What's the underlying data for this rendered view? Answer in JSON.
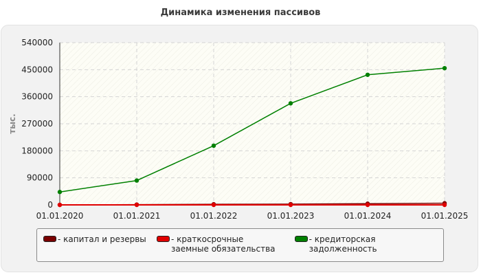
{
  "chart_data": {
    "type": "line",
    "title": "Динамика изменения пассивов",
    "ylabel": "тыс.",
    "xlabel": "",
    "x": [
      "01.01.2020",
      "01.01.2021",
      "01.01.2022",
      "01.01.2023",
      "01.01.2024",
      "01.01.2025"
    ],
    "ylim": [
      0,
      540000
    ],
    "yticks": [
      "0",
      "90000",
      "180000",
      "270000",
      "360000",
      "450000",
      "540000"
    ],
    "grid": true,
    "legend_position": "bottom",
    "series": [
      {
        "name": "капитал и резервы",
        "color": "#7a0000",
        "values": [
          0,
          1000,
          2000,
          2500,
          4000,
          5500
        ]
      },
      {
        "name": "краткосрочные заемные обязательства",
        "color": "#e00000",
        "values": [
          0,
          0,
          0,
          0,
          0,
          0
        ]
      },
      {
        "name": "кредиторская задолженность",
        "color": "#008000",
        "values": [
          43000,
          81000,
          197000,
          338000,
          433000,
          455000
        ]
      }
    ]
  }
}
